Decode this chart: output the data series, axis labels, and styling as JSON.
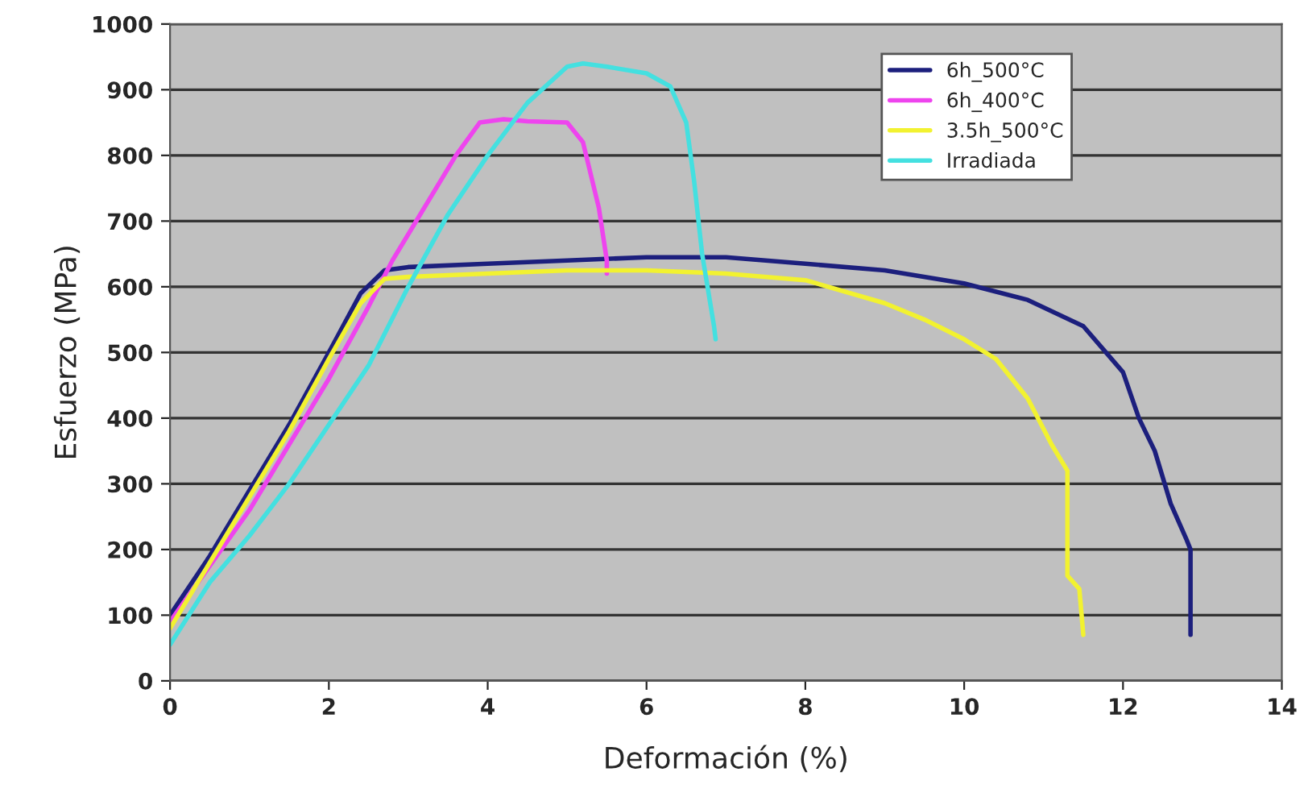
{
  "chart_data": {
    "type": "line",
    "xlabel": "Deformación (%)",
    "ylabel": "Esfuerzo (MPa)",
    "xlim": [
      0,
      14
    ],
    "xticks": [
      0,
      2,
      4,
      6,
      8,
      10,
      12,
      14
    ],
    "ylim": [
      0,
      1000
    ],
    "yticks": [
      0,
      100,
      200,
      300,
      400,
      500,
      600,
      700,
      800,
      900,
      1000
    ],
    "grid": "y",
    "legend": "top right",
    "line_style": "solid",
    "series": [
      {
        "name": "6h_500°C",
        "color": "#1c1f7d",
        "x": [
          0,
          0.5,
          1,
          1.5,
          2,
          2.4,
          2.7,
          3,
          4,
          5,
          6,
          7,
          8,
          9,
          10,
          10.8,
          11.5,
          12,
          12.2,
          12.4,
          12.6,
          12.8,
          12.85,
          12.85
        ],
        "values": [
          100,
          190,
          290,
          390,
          500,
          590,
          625,
          630,
          635,
          640,
          645,
          645,
          635,
          625,
          605,
          580,
          540,
          470,
          400,
          350,
          270,
          215,
          200,
          70
        ]
      },
      {
        "name": "6h_400°C",
        "color": "#ee44ee",
        "x": [
          0,
          0.5,
          1,
          1.5,
          2,
          2.5,
          2.8,
          3.2,
          3.6,
          3.9,
          4.2,
          4.5,
          5,
          5.2,
          5.4,
          5.5,
          5.5
        ],
        "values": [
          90,
          175,
          260,
          360,
          460,
          570,
          640,
          720,
          800,
          850,
          855,
          852,
          850,
          820,
          720,
          640,
          620
        ]
      },
      {
        "name": "3.5h_500°C",
        "color": "#f2f230",
        "x": [
          0,
          0.5,
          1,
          1.5,
          2,
          2.4,
          2.7,
          3,
          4,
          5,
          6,
          7,
          8,
          9,
          9.5,
          10,
          10.4,
          10.8,
          11.1,
          11.3,
          11.3,
          11.45,
          11.5
        ],
        "values": [
          80,
          180,
          280,
          380,
          490,
          575,
          612,
          615,
          620,
          625,
          625,
          620,
          610,
          575,
          550,
          520,
          490,
          430,
          360,
          320,
          160,
          140,
          70
        ]
      },
      {
        "name": "Irradiada",
        "color": "#44e0e0",
        "x": [
          0,
          0.5,
          1,
          1.5,
          2,
          2.5,
          3,
          3.5,
          4,
          4.5,
          5,
          5.2,
          5.5,
          6,
          6.3,
          6.5,
          6.6,
          6.7,
          6.85,
          6.87
        ],
        "values": [
          55,
          150,
          221,
          300,
          390,
          480,
          600,
          710,
          800,
          880,
          935,
          940,
          935,
          925,
          905,
          850,
          760,
          650,
          540,
          520
        ]
      }
    ]
  }
}
